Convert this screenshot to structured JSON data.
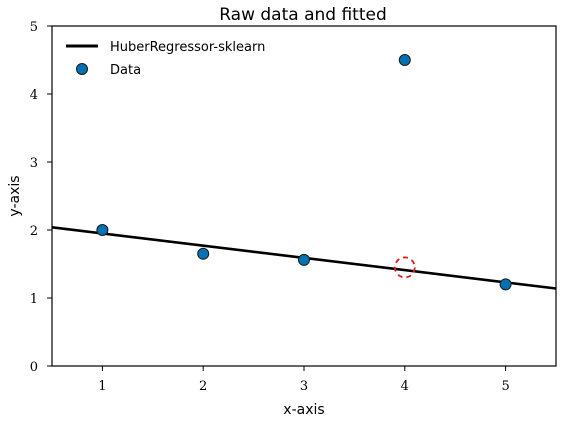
{
  "chart_data": {
    "type": "scatter",
    "title": "Raw data and fitted",
    "xlabel": "x-axis",
    "ylabel": "y-axis",
    "xlim": [
      0.5,
      5.5
    ],
    "ylim": [
      0,
      5
    ],
    "x_ticks": [
      "1",
      "2",
      "3",
      "4",
      "5"
    ],
    "y_ticks": [
      "0",
      "1",
      "2",
      "3",
      "4",
      "5"
    ],
    "grid": false,
    "legend_position": "top-left",
    "series": [
      {
        "name": "HuberRegressor-sklearn",
        "kind": "line",
        "color": "#000000",
        "x": [
          0.5,
          5.5
        ],
        "y": [
          2.04,
          1.14
        ]
      },
      {
        "name": "Data",
        "kind": "scatter",
        "color": "#0072b2",
        "x": [
          1,
          2,
          3,
          4,
          5
        ],
        "y": [
          2.0,
          1.65,
          1.56,
          4.5,
          1.2
        ]
      }
    ],
    "annotations": [
      {
        "kind": "dashed-circle",
        "color": "#e41a1c",
        "x": 4,
        "y": 1.45
      }
    ]
  }
}
